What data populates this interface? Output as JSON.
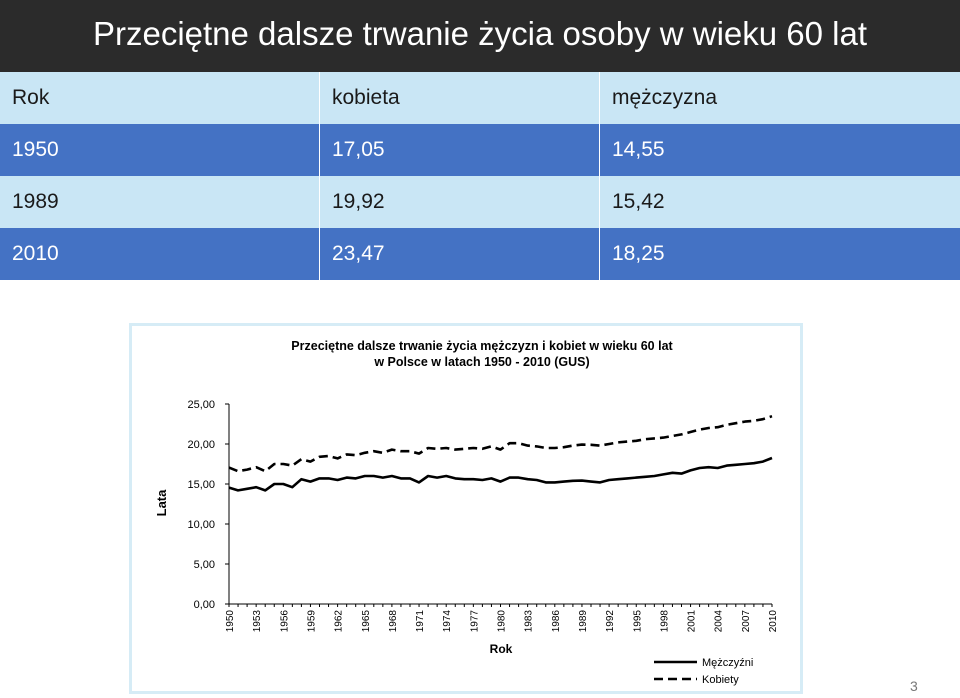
{
  "slide": {
    "title": "Przeciętne dalsze trwanie życia osoby w wieku 60 lat",
    "page_number": "3"
  },
  "table": {
    "headers": [
      "Rok",
      "kobieta",
      "mężczyzna"
    ],
    "rows": [
      [
        "1950",
        "17,05",
        "14,55"
      ],
      [
        "1989",
        "19,92",
        "15,42"
      ],
      [
        "2010",
        "23,47",
        "18,25"
      ]
    ]
  },
  "colors": {
    "title_bar": "#2b2b2b",
    "row_light": "#c9e6f5",
    "row_dark": "#4472c4",
    "chart_border": "#d6ecf6",
    "series_line": "#000000"
  },
  "chart_data": {
    "type": "line",
    "title_line1": "Przeciętne dalsze trwanie życia mężczyzn i kobiet w wieku 60 lat",
    "title_line2": "w Polsce w latach 1950 - 2010 (GUS)",
    "xlabel": "Rok",
    "ylabel": "Lata",
    "ylim": [
      0,
      25
    ],
    "yticks": [
      "0,00",
      "5,00",
      "10,00",
      "15,00",
      "20,00",
      "25,00"
    ],
    "x": [
      1950,
      1951,
      1952,
      1953,
      1954,
      1955,
      1956,
      1957,
      1958,
      1959,
      1960,
      1961,
      1962,
      1963,
      1964,
      1965,
      1966,
      1967,
      1968,
      1969,
      1970,
      1971,
      1972,
      1973,
      1974,
      1975,
      1976,
      1977,
      1978,
      1979,
      1980,
      1981,
      1982,
      1983,
      1984,
      1985,
      1986,
      1987,
      1988,
      1989,
      1990,
      1991,
      1992,
      1993,
      1994,
      1995,
      1996,
      1997,
      1998,
      1999,
      2000,
      2001,
      2002,
      2003,
      2004,
      2005,
      2006,
      2007,
      2008,
      2009,
      2010
    ],
    "xtick_labels": [
      "1950",
      "1953",
      "1956",
      "1959",
      "1962",
      "1965",
      "1968",
      "1971",
      "1974",
      "1977",
      "1980",
      "1983",
      "1986",
      "1989",
      "1992",
      "1995",
      "1998",
      "2001",
      "2004",
      "2007",
      "2010"
    ],
    "legend_position": "bottom-right",
    "series": [
      {
        "name": "Mężczyźni",
        "style": "solid",
        "values": [
          14.55,
          14.2,
          14.4,
          14.6,
          14.2,
          15.0,
          15.0,
          14.6,
          15.6,
          15.3,
          15.7,
          15.7,
          15.5,
          15.8,
          15.7,
          16.0,
          16.0,
          15.8,
          16.0,
          15.7,
          15.7,
          15.2,
          16.0,
          15.8,
          16.0,
          15.7,
          15.6,
          15.6,
          15.5,
          15.7,
          15.3,
          15.8,
          15.8,
          15.6,
          15.5,
          15.2,
          15.2,
          15.3,
          15.4,
          15.42,
          15.3,
          15.2,
          15.5,
          15.6,
          15.7,
          15.8,
          15.9,
          16.0,
          16.2,
          16.4,
          16.3,
          16.7,
          17.0,
          17.1,
          17.0,
          17.3,
          17.4,
          17.5,
          17.6,
          17.8,
          18.25
        ]
      },
      {
        "name": "Kobiety",
        "style": "dashed",
        "values": [
          17.05,
          16.6,
          16.8,
          17.1,
          16.6,
          17.5,
          17.5,
          17.3,
          18.1,
          17.8,
          18.4,
          18.5,
          18.2,
          18.7,
          18.6,
          18.9,
          19.1,
          18.9,
          19.3,
          19.1,
          19.1,
          18.8,
          19.5,
          19.4,
          19.5,
          19.3,
          19.4,
          19.5,
          19.4,
          19.7,
          19.3,
          20.1,
          20.1,
          19.8,
          19.7,
          19.5,
          19.5,
          19.6,
          19.8,
          19.92,
          19.9,
          19.8,
          20.0,
          20.2,
          20.3,
          20.4,
          20.6,
          20.7,
          20.8,
          21.0,
          21.2,
          21.5,
          21.8,
          22.0,
          22.1,
          22.4,
          22.6,
          22.8,
          22.9,
          23.1,
          23.47
        ]
      }
    ]
  }
}
